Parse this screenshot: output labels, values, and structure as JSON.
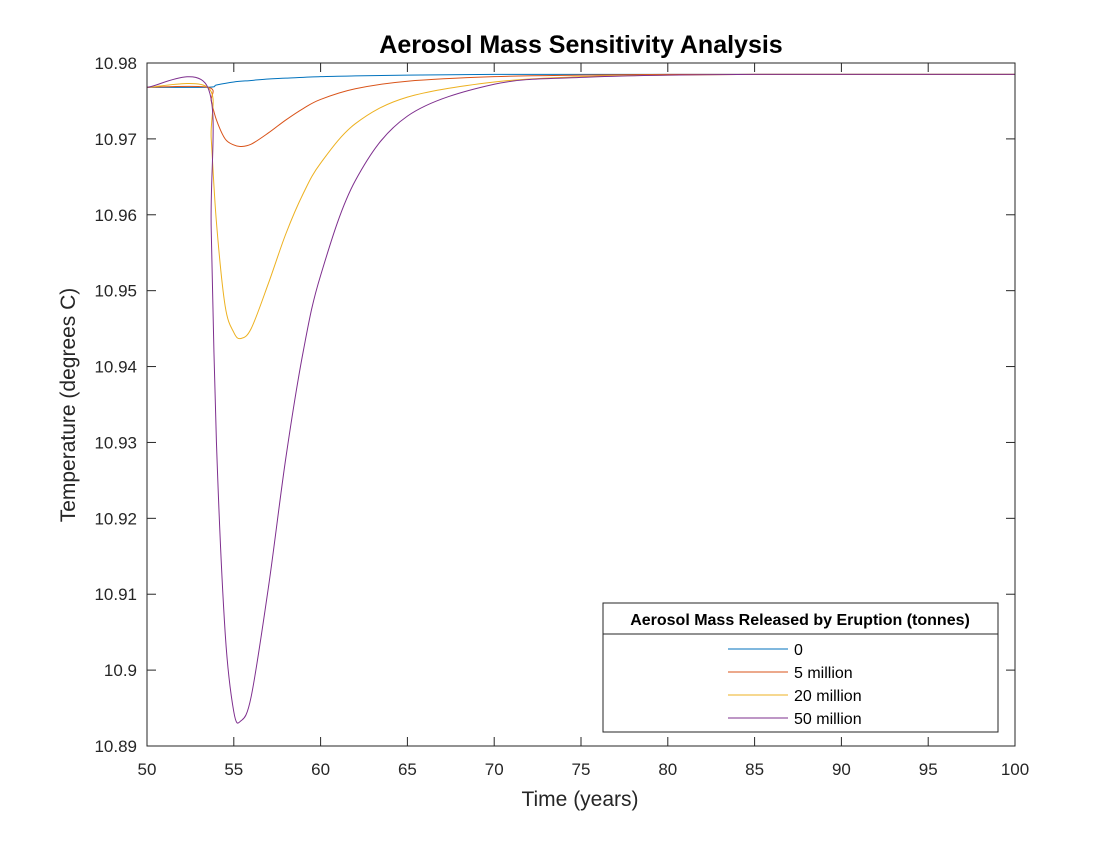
{
  "chart_data": {
    "type": "line",
    "title": "Aerosol Mass Sensitivity Analysis",
    "xlabel": "Time (years)",
    "ylabel": "Temperature (degrees C)",
    "xlim": [
      50,
      100
    ],
    "ylim": [
      10.89,
      10.98
    ],
    "xticks": [
      50,
      55,
      60,
      65,
      70,
      75,
      80,
      85,
      90,
      95,
      100
    ],
    "yticks": [
      10.89,
      10.9,
      10.91,
      10.92,
      10.93,
      10.94,
      10.95,
      10.96,
      10.97,
      10.98
    ],
    "ytick_labels": [
      "10.89",
      "10.9",
      "10.91",
      "10.92",
      "10.93",
      "10.94",
      "10.95",
      "10.96",
      "10.97",
      "10.98"
    ],
    "grid": false,
    "legend": {
      "title": "Aerosol Mass Released by Eruption (tonnes)",
      "placement": "bottom-right"
    },
    "series": [
      {
        "name": "0",
        "color": "#0072BD",
        "x": [
          50,
          53.5,
          54,
          55,
          56,
          57,
          58,
          60,
          62,
          65,
          70,
          75,
          80,
          90,
          100
        ],
        "y": [
          10.9768,
          10.9768,
          10.9771,
          10.9775,
          10.9777,
          10.9779,
          10.978,
          10.9782,
          10.9783,
          10.9784,
          10.9785,
          10.9785,
          10.9785,
          10.9785,
          10.9785
        ]
      },
      {
        "name": "5 million",
        "color": "#D95319",
        "x": [
          50,
          53.5,
          53.7,
          54,
          54.5,
          55,
          55.4,
          56,
          57,
          58,
          59,
          60,
          62,
          65,
          70,
          75,
          80,
          85,
          90,
          100
        ],
        "y": [
          10.9768,
          10.9768,
          10.975,
          10.9725,
          10.97,
          10.9692,
          10.969,
          10.9693,
          10.9708,
          10.9725,
          10.974,
          10.9752,
          10.9766,
          10.9776,
          10.9782,
          10.9784,
          10.9785,
          10.9785,
          10.9785,
          10.9785
        ]
      },
      {
        "name": "20 million",
        "color": "#EDB120",
        "x": [
          50,
          53.5,
          53.7,
          54,
          54.5,
          55,
          55.4,
          56,
          57,
          58,
          59,
          60,
          62,
          65,
          70,
          75,
          80,
          85,
          90,
          100
        ],
        "y": [
          10.9768,
          10.9768,
          10.97,
          10.959,
          10.948,
          10.9445,
          10.9437,
          10.945,
          10.951,
          10.9575,
          10.9628,
          10.9668,
          10.972,
          10.9755,
          10.9775,
          10.9782,
          10.9784,
          10.9785,
          10.9785,
          10.9785
        ]
      },
      {
        "name": "50 million",
        "color": "#7E2F8E",
        "x": [
          50,
          53.5,
          53.7,
          54,
          54.5,
          55,
          55.4,
          56,
          57,
          58,
          59,
          60,
          62,
          65,
          70,
          75,
          80,
          85,
          90,
          100
        ],
        "y": [
          10.9768,
          10.9768,
          10.958,
          10.93,
          10.905,
          10.8945,
          10.8933,
          10.8965,
          10.911,
          10.928,
          10.942,
          10.952,
          10.9645,
          10.973,
          10.9772,
          10.9781,
          10.9784,
          10.9785,
          10.9785,
          10.9785
        ]
      }
    ]
  }
}
